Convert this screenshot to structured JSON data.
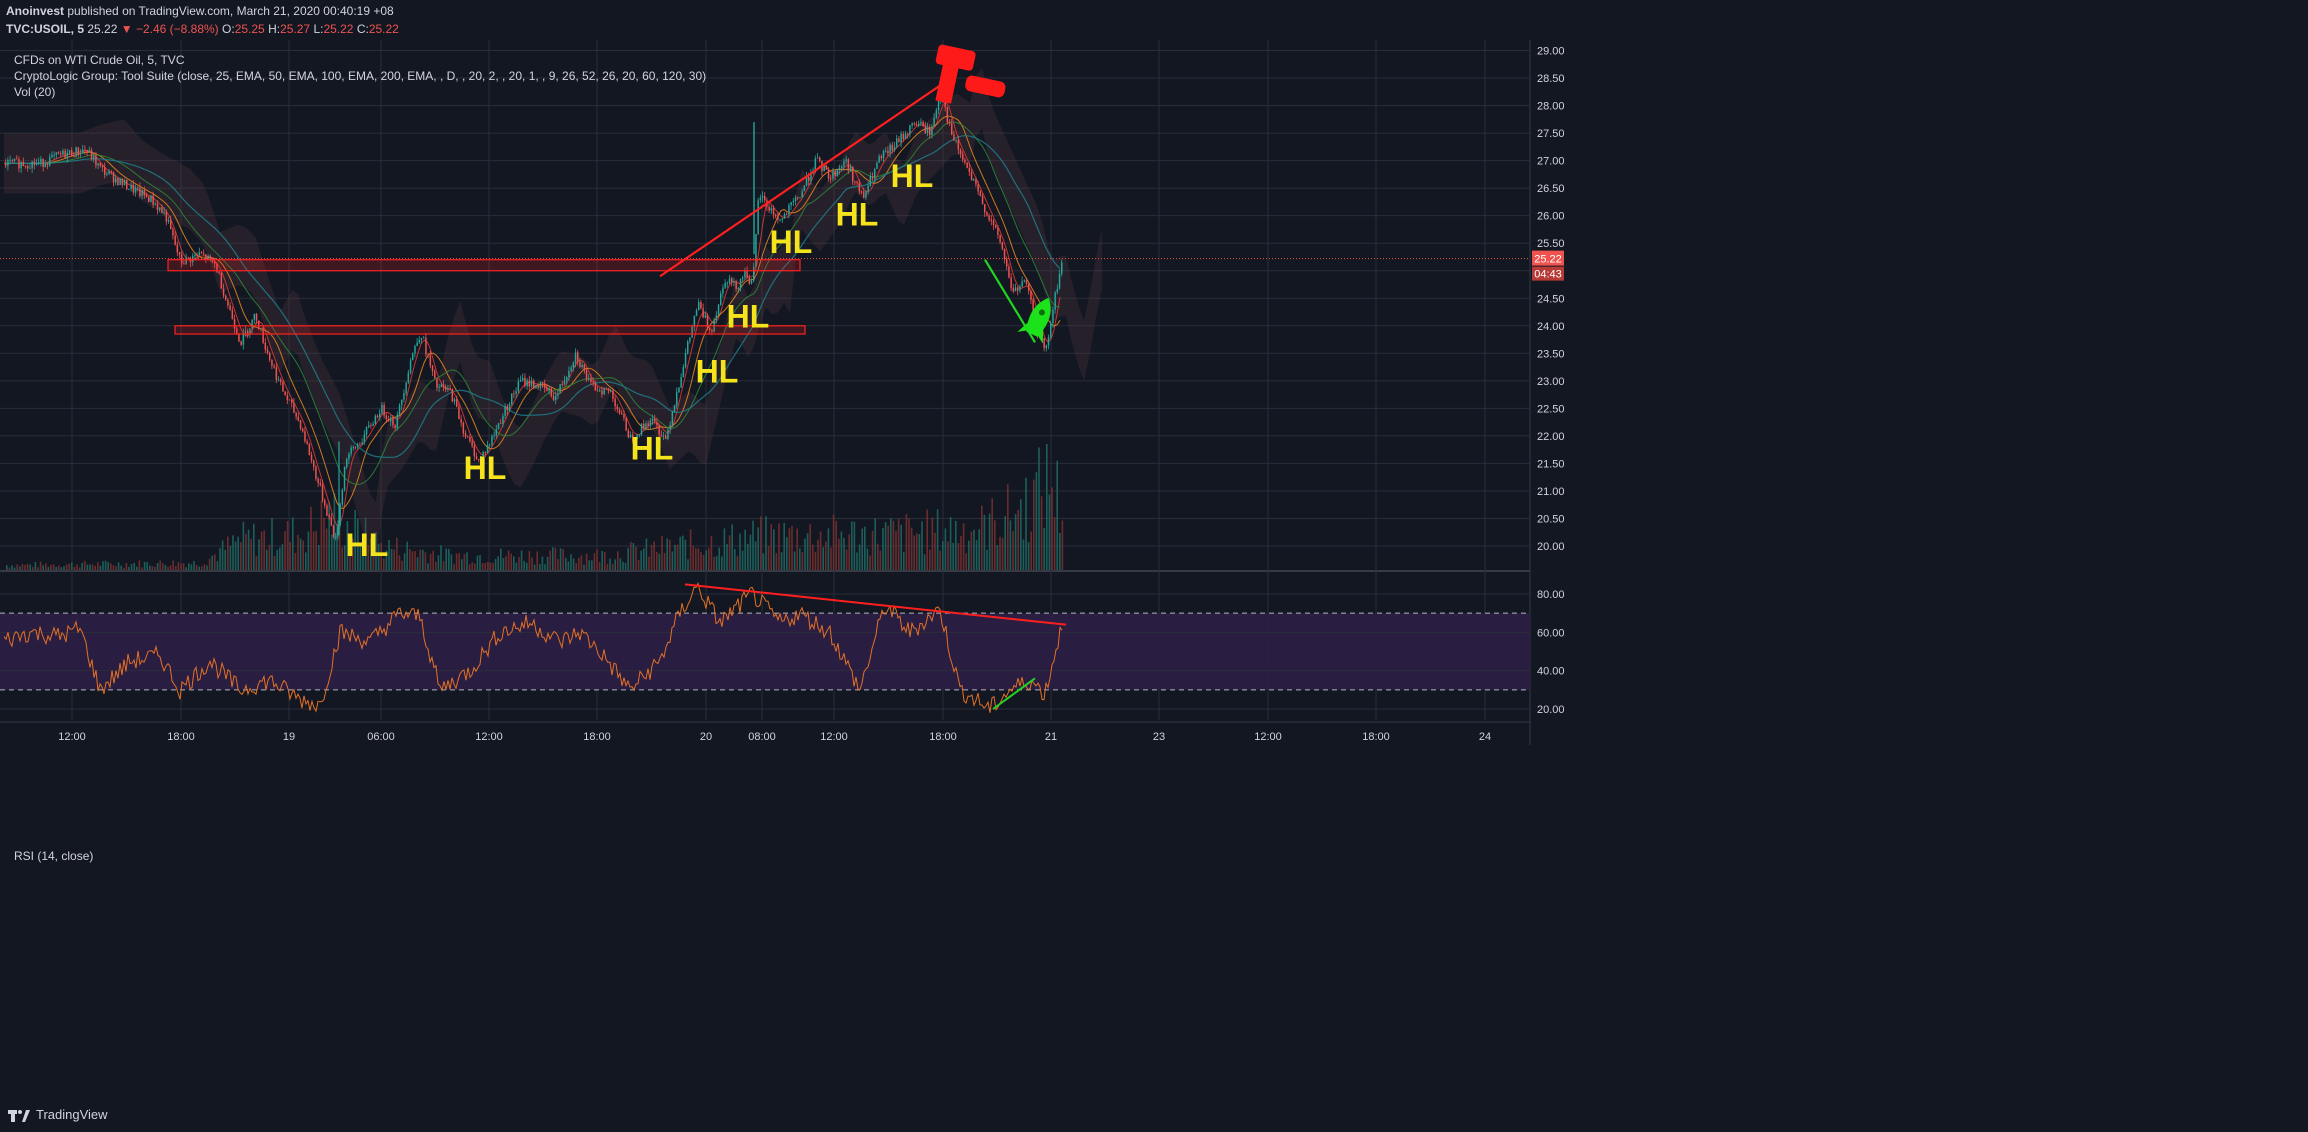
{
  "header": {
    "author": "Anoinvest",
    "published": "published on TradingView.com, March 21, 2020 00:40:19 +08",
    "symbol": "TVC:USOIL, 5",
    "last": "25.22",
    "change": "▼ −2.46 (−8.88%)",
    "o_label": "O:",
    "o_value": "25.25",
    "h_label": "H:",
    "h_value": "25.27",
    "l_label": "L:",
    "l_value": "25.22",
    "c_label": "C:",
    "c_value": "25.22"
  },
  "legends": {
    "main_title": "CFDs on WTI Crude Oil, 5, TVC",
    "indicator": "CryptoLogic Group: Tool Suite (close, 25, EMA, 50, EMA, 100, EMA, 200, EMA, , D, , 20, 2, , 20, 1, , 9, 26, 52, 26, 20, 60, 120, 30)",
    "volume": "Vol (20)",
    "rsi": "RSI (14, close)"
  },
  "footer": {
    "brand": "TradingView"
  },
  "chart_data": [
    {
      "type": "candlestick",
      "title": "CFDs on WTI Crude Oil, 5, TVC",
      "ylim": [
        19.75,
        29.25
      ],
      "y_ticks": [
        "29.00",
        "28.50",
        "28.00",
        "27.50",
        "27.00",
        "26.50",
        "26.00",
        "25.50",
        "25.00",
        "24.50",
        "24.00",
        "23.50",
        "23.00",
        "22.50",
        "22.00",
        "21.50",
        "21.00",
        "20.50",
        "20.00"
      ],
      "x_ticks": [
        "12:00",
        "18:00",
        "19",
        "06:00",
        "12:00",
        "18:00",
        "20",
        "08:00",
        "12:00",
        "18:00",
        "21",
        "23",
        "12:00",
        "18:00",
        "24"
      ],
      "last_price_label": "25.22",
      "countdown_label": "04:43",
      "price_path": [
        {
          "t": 0,
          "p": 26.95
        },
        {
          "t": 40,
          "p": 26.95
        },
        {
          "t": 60,
          "p": 27.1
        },
        {
          "t": 85,
          "p": 27.2
        },
        {
          "t": 100,
          "p": 26.85
        },
        {
          "t": 120,
          "p": 26.6
        },
        {
          "t": 150,
          "p": 26.3
        },
        {
          "t": 165,
          "p": 26.0
        },
        {
          "t": 180,
          "p": 25.15
        },
        {
          "t": 200,
          "p": 25.3
        },
        {
          "t": 215,
          "p": 25.1
        },
        {
          "t": 225,
          "p": 24.5
        },
        {
          "t": 240,
          "p": 23.7
        },
        {
          "t": 255,
          "p": 24.2
        },
        {
          "t": 265,
          "p": 23.6
        },
        {
          "t": 280,
          "p": 22.9
        },
        {
          "t": 300,
          "p": 22.2
        },
        {
          "t": 320,
          "p": 21.0
        },
        {
          "t": 335,
          "p": 20.1
        },
        {
          "t": 345,
          "p": 21.6
        },
        {
          "t": 360,
          "p": 21.9
        },
        {
          "t": 380,
          "p": 22.5
        },
        {
          "t": 395,
          "p": 22.2
        },
        {
          "t": 410,
          "p": 23.4
        },
        {
          "t": 420,
          "p": 23.9
        },
        {
          "t": 435,
          "p": 22.9
        },
        {
          "t": 450,
          "p": 22.8
        },
        {
          "t": 465,
          "p": 22.0
        },
        {
          "t": 478,
          "p": 21.55
        },
        {
          "t": 490,
          "p": 21.9
        },
        {
          "t": 505,
          "p": 22.5
        },
        {
          "t": 520,
          "p": 23.0
        },
        {
          "t": 540,
          "p": 22.9
        },
        {
          "t": 555,
          "p": 22.7
        },
        {
          "t": 575,
          "p": 23.5
        },
        {
          "t": 590,
          "p": 22.9
        },
        {
          "t": 610,
          "p": 22.8
        },
        {
          "t": 630,
          "p": 21.95
        },
        {
          "t": 650,
          "p": 22.3
        },
        {
          "t": 665,
          "p": 21.95
        },
        {
          "t": 680,
          "p": 23.1
        },
        {
          "t": 697,
          "p": 24.4
        },
        {
          "t": 710,
          "p": 23.9
        },
        {
          "t": 725,
          "p": 24.9
        },
        {
          "t": 735,
          "p": 24.7
        },
        {
          "t": 745,
          "p": 25.0
        },
        {
          "t": 752,
          "p": 24.7
        },
        {
          "t": 758,
          "p": 26.4
        },
        {
          "t": 770,
          "p": 26.1
        },
        {
          "t": 780,
          "p": 25.9
        },
        {
          "t": 800,
          "p": 26.4
        },
        {
          "t": 815,
          "p": 27.0
        },
        {
          "t": 830,
          "p": 26.7
        },
        {
          "t": 845,
          "p": 27.0
        },
        {
          "t": 862,
          "p": 26.3
        },
        {
          "t": 878,
          "p": 27.0
        },
        {
          "t": 895,
          "p": 27.3
        },
        {
          "t": 915,
          "p": 27.7
        },
        {
          "t": 930,
          "p": 27.5
        },
        {
          "t": 940,
          "p": 28.3
        },
        {
          "t": 950,
          "p": 27.5
        },
        {
          "t": 965,
          "p": 26.9
        },
        {
          "t": 985,
          "p": 26.1
        },
        {
          "t": 1000,
          "p": 25.5
        },
        {
          "t": 1012,
          "p": 24.6
        },
        {
          "t": 1025,
          "p": 24.8
        },
        {
          "t": 1035,
          "p": 24.0
        },
        {
          "t": 1045,
          "p": 23.5
        },
        {
          "t": 1055,
          "p": 24.6
        },
        {
          "t": 1062,
          "p": 25.22
        }
      ],
      "volume_profile": [
        {
          "t": 0,
          "v": 0.04
        },
        {
          "t": 200,
          "v": 0.06
        },
        {
          "t": 240,
          "v": 0.25
        },
        {
          "t": 300,
          "v": 0.3
        },
        {
          "t": 330,
          "v": 0.45
        },
        {
          "t": 380,
          "v": 0.2
        },
        {
          "t": 450,
          "v": 0.12
        },
        {
          "t": 600,
          "v": 0.12
        },
        {
          "t": 700,
          "v": 0.22
        },
        {
          "t": 760,
          "v": 0.28
        },
        {
          "t": 900,
          "v": 0.3
        },
        {
          "t": 980,
          "v": 0.35
        },
        {
          "t": 1020,
          "v": 0.5
        },
        {
          "t": 1050,
          "v": 0.75
        },
        {
          "t": 1062,
          "v": 0.5
        }
      ],
      "annotations": [
        {
          "text": "HL",
          "t": 367,
          "p": 20.0
        },
        {
          "text": "HL",
          "t": 485,
          "p": 21.4
        },
        {
          "text": "HL",
          "t": 652,
          "p": 21.75
        },
        {
          "text": "HL",
          "t": 717,
          "p": 23.15
        },
        {
          "text": "HL",
          "t": 748,
          "p": 24.15
        },
        {
          "text": "HL",
          "t": 791,
          "p": 25.5
        },
        {
          "text": "HL",
          "t": 857,
          "p": 26.0
        },
        {
          "text": "HL",
          "t": 912,
          "p": 26.7
        }
      ],
      "zones": [
        {
          "from_t": 168,
          "to_t": 800,
          "low": 25.0,
          "high": 25.2
        },
        {
          "from_t": 175,
          "to_t": 805,
          "low": 23.85,
          "high": 24.0
        }
      ],
      "trendlines": [
        {
          "color": "#ff1f1f",
          "from": {
            "t": 660,
            "p": 24.9
          },
          "to": {
            "t": 943,
            "p": 28.4
          }
        },
        {
          "color": "#22d422",
          "from": {
            "t": 985,
            "p": 25.2
          },
          "to": {
            "t": 1035,
            "p": 23.7
          }
        }
      ]
    },
    {
      "type": "line",
      "title": "RSI (14, close)",
      "ylim": [
        15,
        90
      ],
      "y_ticks": [
        "80.00",
        "60.00",
        "40.00",
        "20.00"
      ],
      "bands": [
        30,
        70
      ],
      "rsi_path": [
        {
          "t": 0,
          "v": 55
        },
        {
          "t": 30,
          "v": 60
        },
        {
          "t": 60,
          "v": 58
        },
        {
          "t": 80,
          "v": 62
        },
        {
          "t": 100,
          "v": 30
        },
        {
          "t": 130,
          "v": 45
        },
        {
          "t": 160,
          "v": 48
        },
        {
          "t": 180,
          "v": 30
        },
        {
          "t": 210,
          "v": 45
        },
        {
          "t": 240,
          "v": 30
        },
        {
          "t": 270,
          "v": 35
        },
        {
          "t": 300,
          "v": 25
        },
        {
          "t": 320,
          "v": 22
        },
        {
          "t": 340,
          "v": 60
        },
        {
          "t": 370,
          "v": 55
        },
        {
          "t": 400,
          "v": 70
        },
        {
          "t": 420,
          "v": 68
        },
        {
          "t": 440,
          "v": 30
        },
        {
          "t": 470,
          "v": 40
        },
        {
          "t": 500,
          "v": 60
        },
        {
          "t": 530,
          "v": 65
        },
        {
          "t": 560,
          "v": 55
        },
        {
          "t": 580,
          "v": 60
        },
        {
          "t": 600,
          "v": 50
        },
        {
          "t": 630,
          "v": 30
        },
        {
          "t": 660,
          "v": 45
        },
        {
          "t": 680,
          "v": 70
        },
        {
          "t": 697,
          "v": 84
        },
        {
          "t": 720,
          "v": 65
        },
        {
          "t": 752,
          "v": 80
        },
        {
          "t": 780,
          "v": 65
        },
        {
          "t": 800,
          "v": 70
        },
        {
          "t": 830,
          "v": 60
        },
        {
          "t": 860,
          "v": 30
        },
        {
          "t": 885,
          "v": 74
        },
        {
          "t": 910,
          "v": 60
        },
        {
          "t": 940,
          "v": 72
        },
        {
          "t": 960,
          "v": 30
        },
        {
          "t": 990,
          "v": 20
        },
        {
          "t": 1010,
          "v": 30
        },
        {
          "t": 1030,
          "v": 35
        },
        {
          "t": 1045,
          "v": 28
        },
        {
          "t": 1062,
          "v": 64
        }
      ],
      "trendlines": [
        {
          "color": "#ff1f1f",
          "from": {
            "t": 685,
            "v": 85
          },
          "to": {
            "t": 1066,
            "v": 64
          }
        },
        {
          "color": "#22d422",
          "from": {
            "t": 993,
            "v": 20
          },
          "to": {
            "t": 1035,
            "v": 36
          }
        }
      ]
    }
  ],
  "colors": {
    "background": "#131722",
    "grid": "#2a2e39",
    "candle_up": "#26a69a",
    "candle_down": "#ef5350",
    "axis_text": "#d1d4dc",
    "hl_text": "#f5e31b",
    "rsi_line": "#e37125",
    "rsi_band": "#2b1d45",
    "last_price": "#ef5350"
  },
  "icons": {
    "hammer": "hammer-icon",
    "rocket": "rocket-icon",
    "brand_logo": "tradingview-logo-icon"
  }
}
